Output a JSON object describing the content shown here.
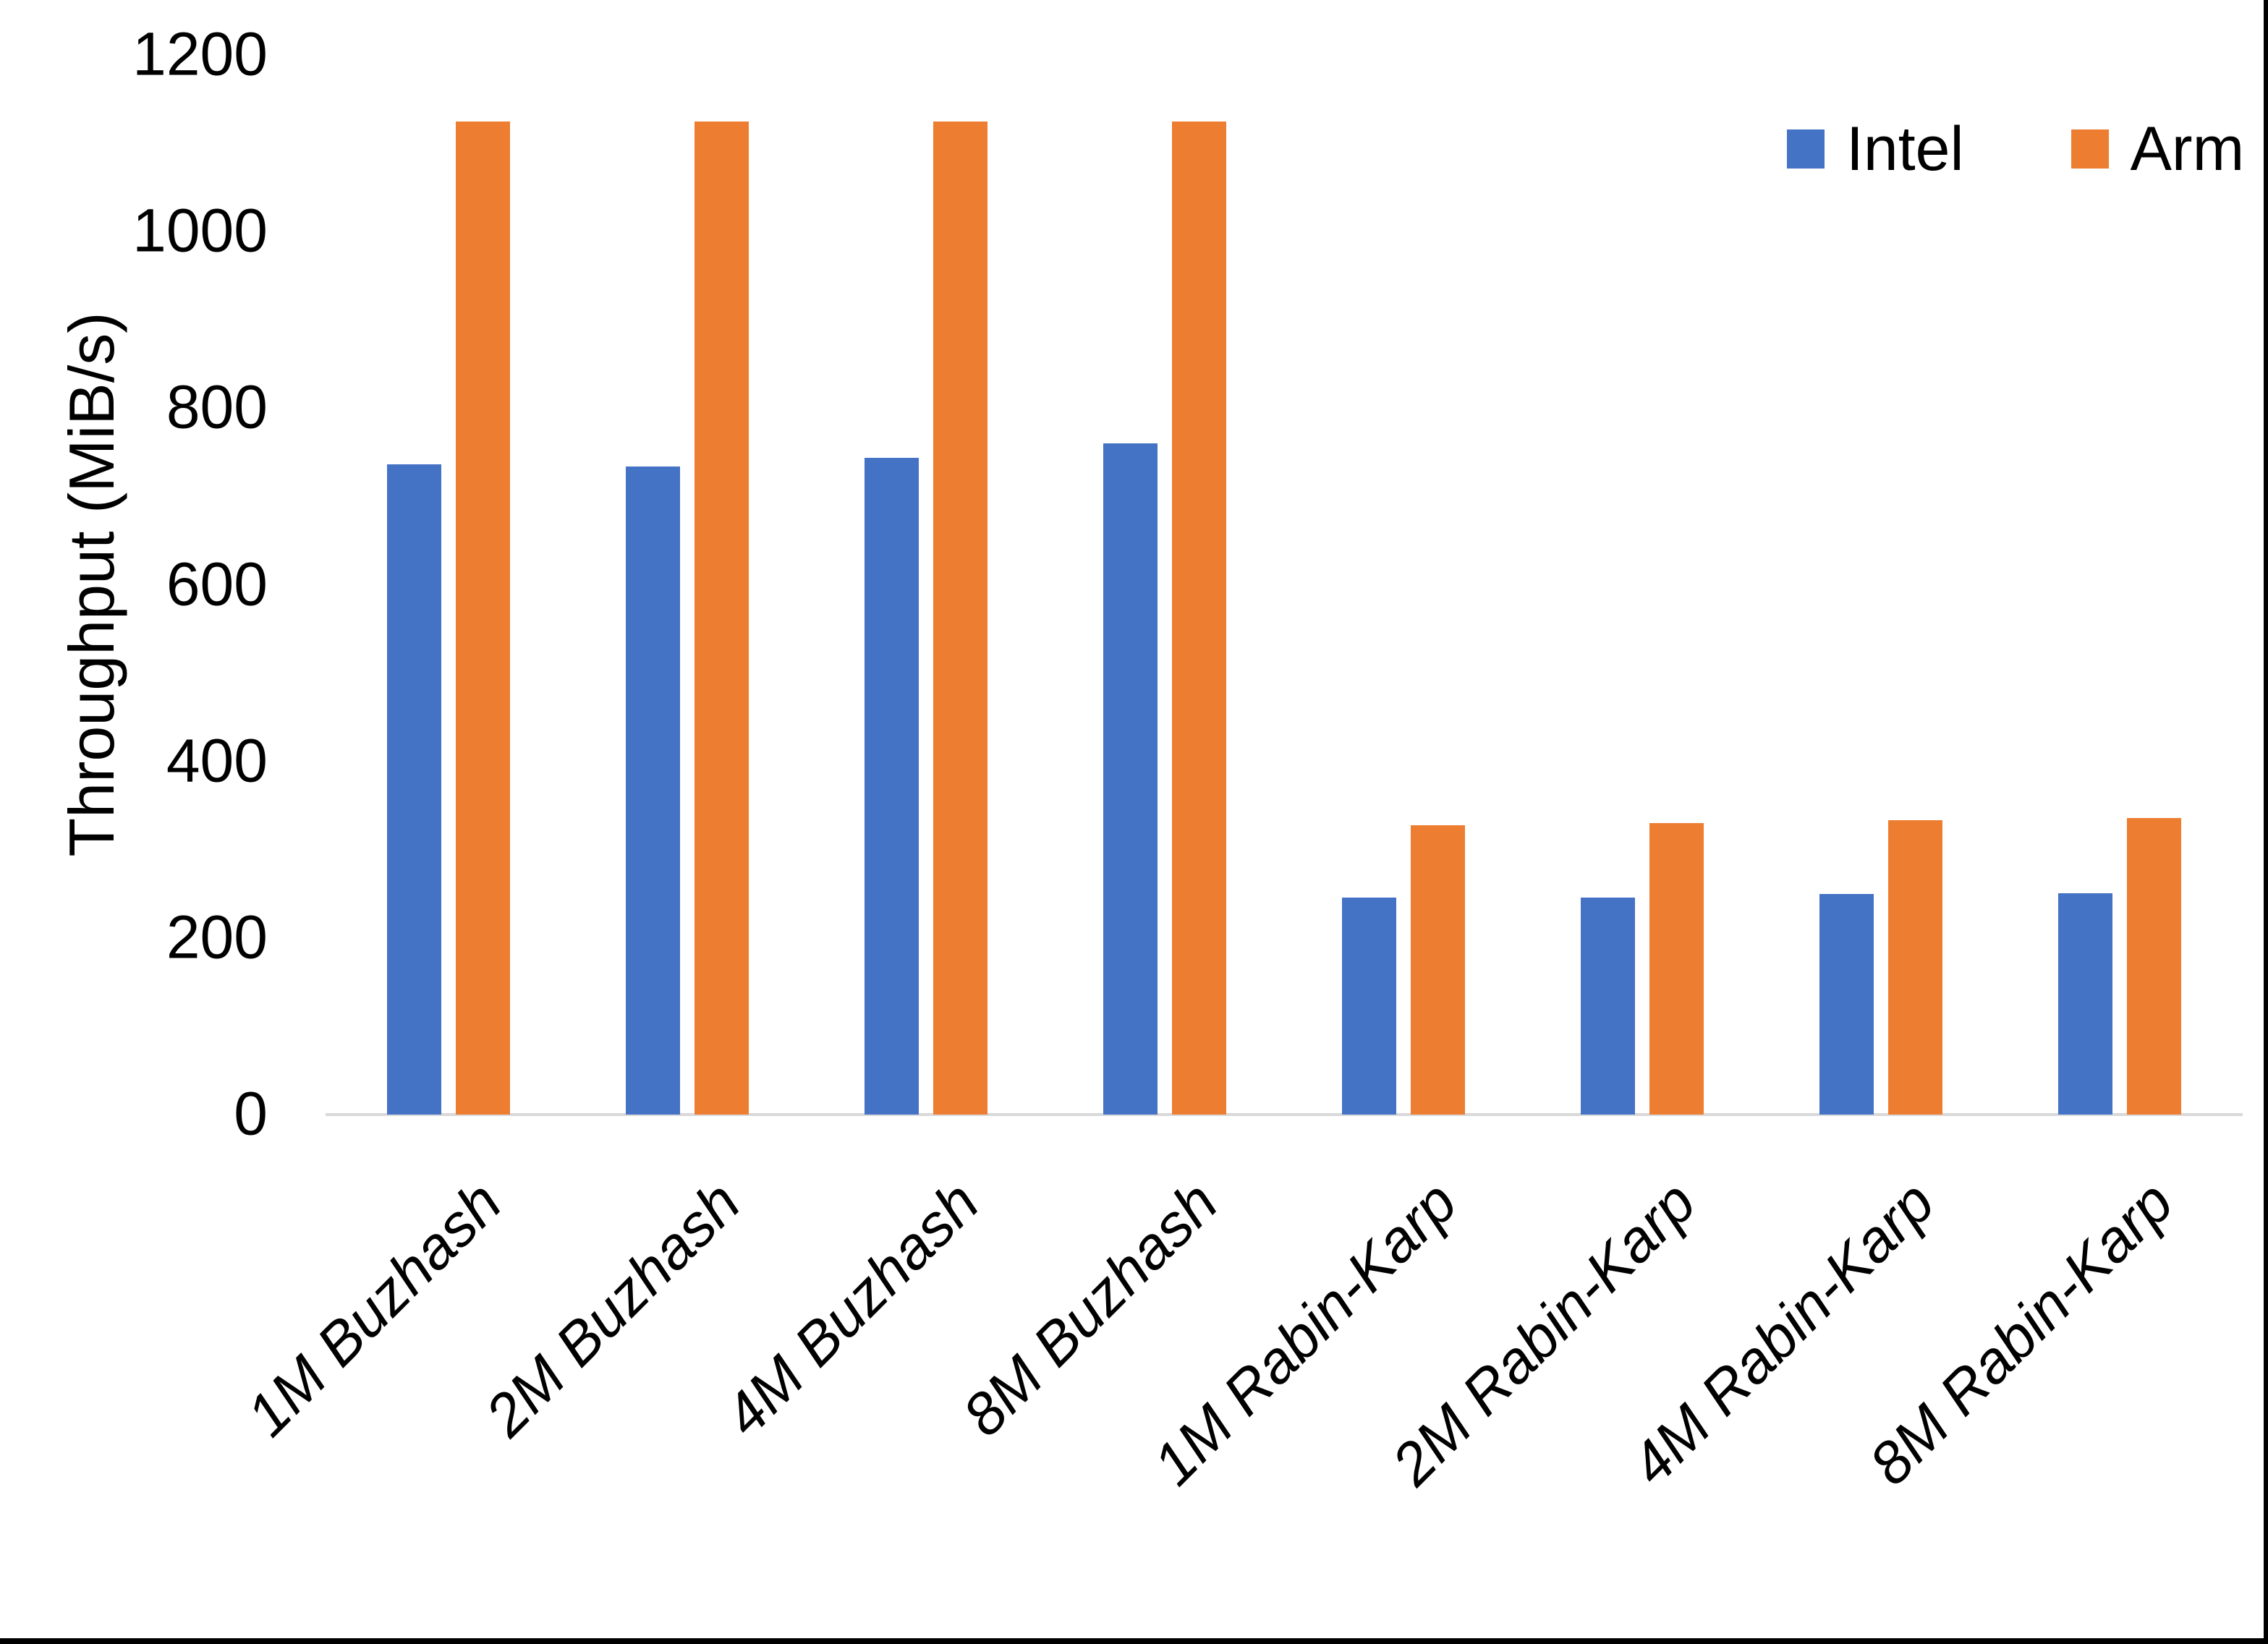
{
  "chart_data": {
    "type": "bar",
    "title": "",
    "xlabel": "",
    "ylabel": "Throughput (MiB/s)",
    "ylim": [
      0,
      1200
    ],
    "y_ticks": [
      0,
      200,
      400,
      600,
      800,
      1000,
      1200
    ],
    "grid": false,
    "legend_position": "top-right",
    "categories": [
      "1M Buzhash",
      "2M Buzhash",
      "4M Buzhash",
      "8M Buzhash",
      "1M Rabin-Karp",
      "2M Rabin-Karp",
      "4M Rabin-Karp",
      "8M Rabin-Karp"
    ],
    "series": [
      {
        "name": "Intel",
        "color": "#4472C4",
        "values": [
          736,
          734,
          744,
          760,
          246,
          246,
          250,
          251
        ]
      },
      {
        "name": "Arm",
        "color": "#ED7D31",
        "values": [
          1125,
          1125,
          1125,
          1125,
          328,
          330,
          333,
          336
        ]
      }
    ],
    "axis_line_color": "#D9D9D9",
    "text_color": "#000000",
    "frame_color": "#000000"
  }
}
